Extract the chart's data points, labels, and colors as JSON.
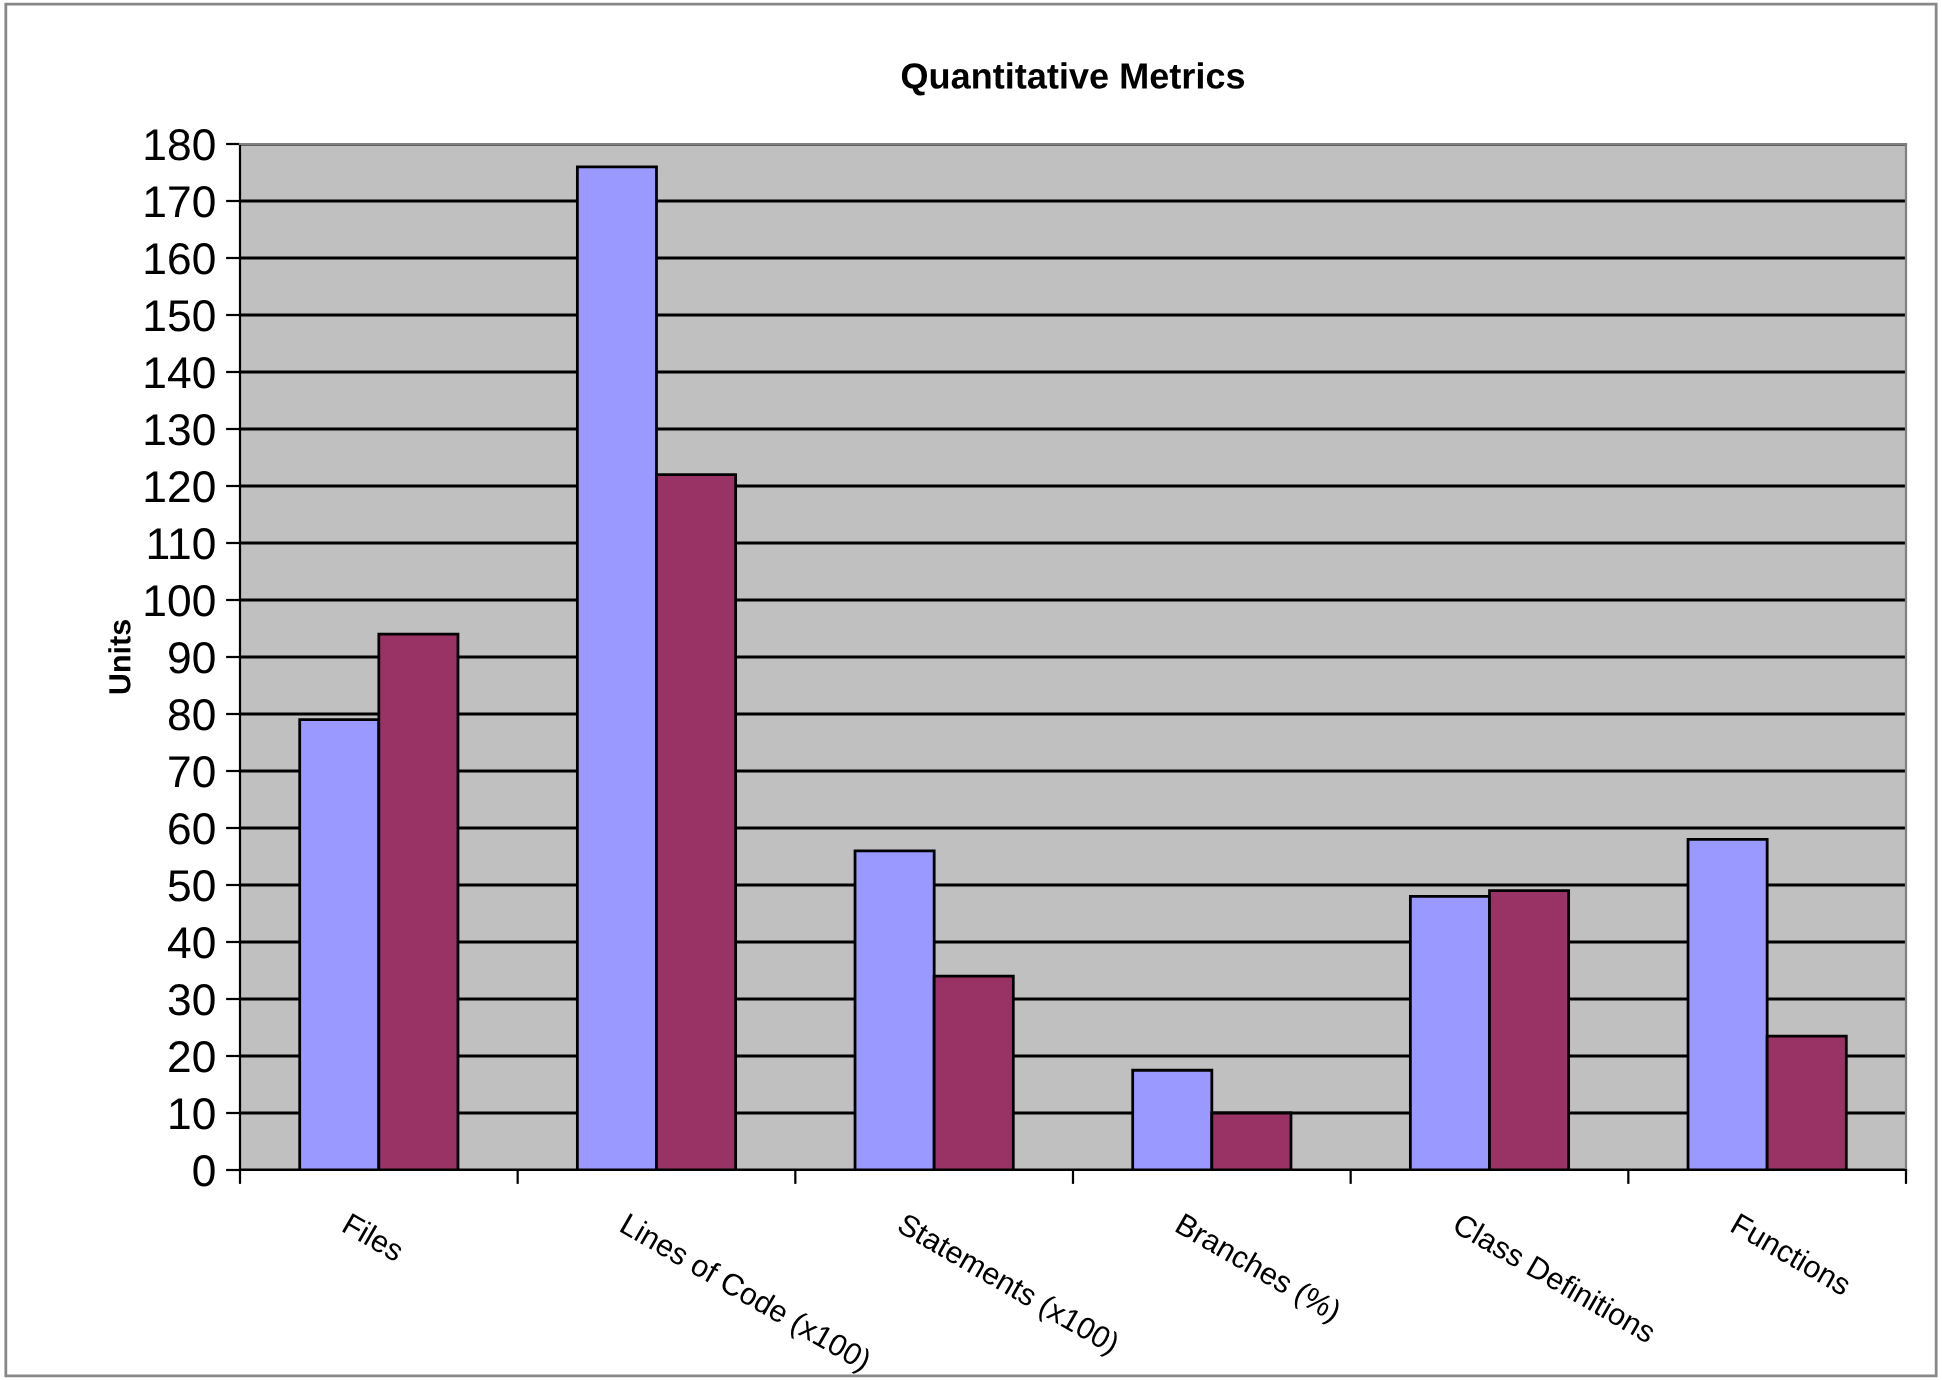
{
  "chart_data": {
    "type": "bar",
    "title": "Quantitative Metrics",
    "ylabel": "Units",
    "categories": [
      "Files",
      "Lines of Code (x100)",
      "Statements (x100)",
      "Branches (%)",
      "Class Definitions",
      "Functions"
    ],
    "series": [
      {
        "color": "#9999ff",
        "values": [
          79,
          176,
          56,
          17.5,
          48,
          58
        ]
      },
      {
        "color": "#993366",
        "values": [
          94,
          122,
          34,
          10,
          49,
          23.5
        ]
      }
    ],
    "ylim": [
      0,
      180
    ],
    "yticks": [
      0,
      10,
      20,
      30,
      40,
      50,
      60,
      70,
      80,
      90,
      100,
      110,
      120,
      130,
      140,
      150,
      160,
      170,
      180
    ],
    "grid": "y"
  }
}
